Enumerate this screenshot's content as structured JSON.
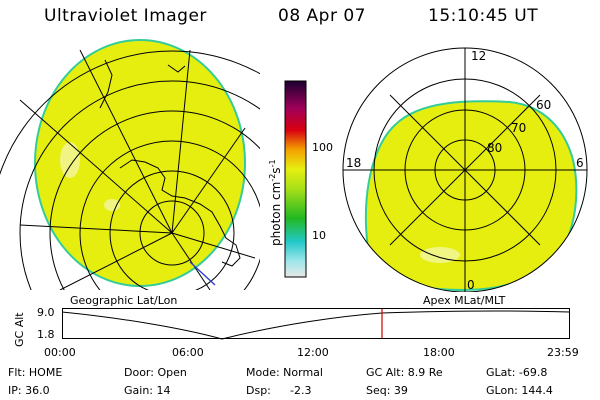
{
  "header": {
    "instrument": "Ultraviolet Imager",
    "date": "08 Apr 07",
    "time": "15:10:45 UT"
  },
  "left_panel": {
    "label": "Geographic Lat/Lon"
  },
  "right_panel": {
    "label": "Apex MLat/MLT",
    "mlt_labels": {
      "top": "12",
      "left": "18",
      "right": "6",
      "bottom": "0"
    },
    "lat_labels": [
      "60",
      "70",
      "80"
    ]
  },
  "colorbar": {
    "unit_label": "photon cm",
    "unit_exp1": "-2",
    "unit_mid": "s",
    "unit_exp2": "-1",
    "ticks": [
      "100",
      "10"
    ],
    "scale": "log"
  },
  "altitude_plot": {
    "ylabel": "GC Alt",
    "y_ticks": [
      "9.0",
      "1.8"
    ],
    "x_ticks": [
      "00:00",
      "06:00",
      "12:00",
      "18:00",
      "23:59"
    ],
    "current_time_marker": "15:10:45"
  },
  "status": {
    "flt": "Flt: HOME",
    "ip": "IP: 36.0",
    "door": "Door: Open",
    "gain": "Gain: 14",
    "mode": "Mode: Normal",
    "dsp_label": "Dsp:",
    "dsp_value": "-2.3",
    "gc_alt": "GC Alt: 8.9 Re",
    "seq": "Seq: 39",
    "glat": "GLat: -69.8",
    "glon": "GLon: 144.4"
  },
  "colors": {
    "aurora_fill": "#e6ee10",
    "limb": "#33cc99",
    "marker": "#cc0000"
  }
}
